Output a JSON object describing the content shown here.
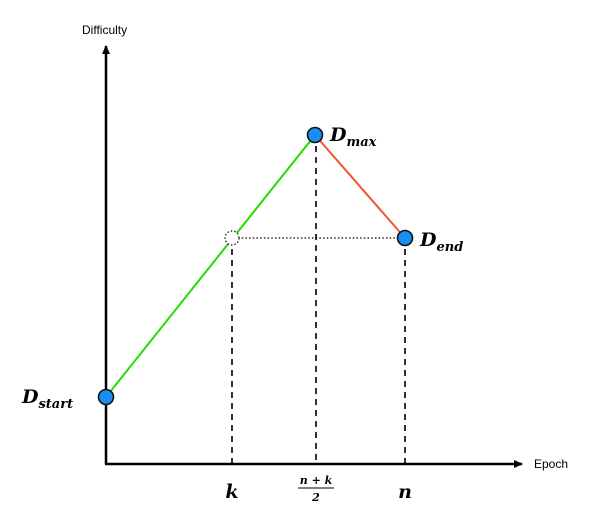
{
  "diagram": {
    "axes": {
      "y_label": "Difficulty",
      "x_label": "Epoch"
    },
    "points": {
      "start": {
        "symbol": "D",
        "subscript": "start"
      },
      "max": {
        "symbol": "D",
        "subscript": "max"
      },
      "end": {
        "symbol": "D",
        "subscript": "end"
      }
    },
    "x_ticks": {
      "k": "k",
      "mid_numerator": "n + k",
      "mid_denominator": "2",
      "n": "n"
    },
    "colors": {
      "rising_segment": "#22dd00",
      "falling_segment": "#ee5533",
      "point_fill": "#1a8ef0",
      "point_stroke": "#111111",
      "axis": "#000000"
    }
  }
}
